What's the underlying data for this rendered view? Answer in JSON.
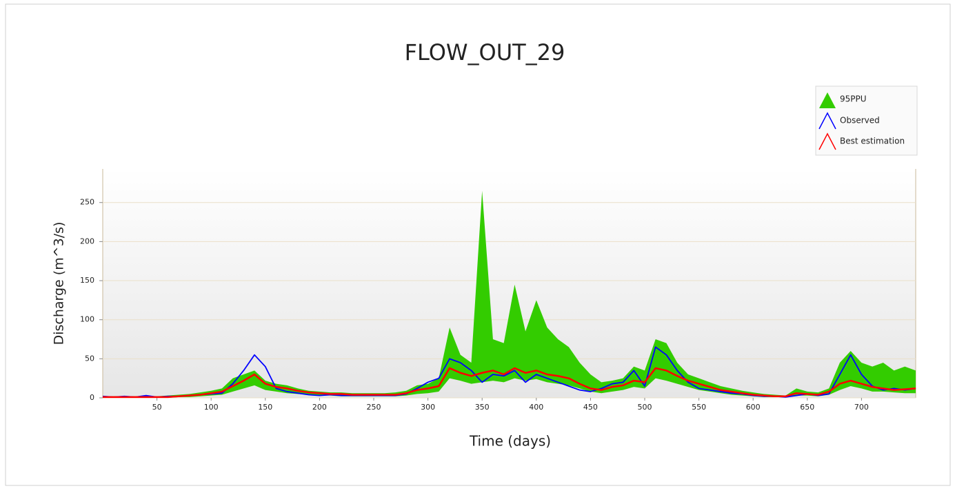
{
  "chart_data": {
    "type": "band-line",
    "title": "FLOW_OUT_29",
    "xlabel": "Time (days)",
    "ylabel": "Discharge (m^3/s)",
    "x": [
      0,
      10,
      20,
      30,
      40,
      50,
      60,
      70,
      80,
      90,
      100,
      110,
      120,
      130,
      140,
      150,
      160,
      170,
      180,
      190,
      200,
      210,
      220,
      230,
      240,
      250,
      260,
      270,
      280,
      290,
      300,
      310,
      320,
      330,
      340,
      350,
      360,
      370,
      380,
      390,
      400,
      410,
      420,
      430,
      440,
      450,
      460,
      470,
      480,
      490,
      500,
      510,
      520,
      530,
      540,
      550,
      560,
      570,
      580,
      590,
      600,
      610,
      620,
      630,
      640,
      650,
      660,
      670,
      680,
      690,
      700,
      710,
      720,
      730,
      740,
      750
    ],
    "series": [
      {
        "name": "95PPU",
        "color": "#33cc00",
        "lower": [
          0,
          0,
          0,
          0,
          0,
          0,
          0,
          1,
          1,
          2,
          3,
          4,
          8,
          12,
          16,
          10,
          8,
          6,
          5,
          4,
          3,
          3,
          2,
          2,
          2,
          2,
          2,
          2,
          3,
          5,
          6,
          8,
          25,
          22,
          18,
          20,
          22,
          20,
          25,
          22,
          24,
          20,
          18,
          16,
          12,
          8,
          6,
          8,
          10,
          14,
          12,
          25,
          22,
          18,
          14,
          10,
          8,
          6,
          4,
          3,
          2,
          1,
          1,
          1,
          3,
          3,
          2,
          4,
          10,
          15,
          12,
          8,
          8,
          7,
          6,
          6
        ],
        "upper": [
          2,
          2,
          2,
          2,
          2,
          2,
          3,
          4,
          5,
          7,
          9,
          12,
          25,
          30,
          35,
          22,
          18,
          16,
          12,
          9,
          8,
          7,
          7,
          6,
          6,
          6,
          6,
          7,
          9,
          16,
          18,
          25,
          90,
          55,
          45,
          265,
          75,
          70,
          145,
          85,
          125,
          90,
          75,
          65,
          45,
          30,
          20,
          22,
          25,
          40,
          35,
          75,
          70,
          45,
          30,
          25,
          20,
          15,
          12,
          9,
          7,
          5,
          4,
          3,
          12,
          8,
          7,
          12,
          45,
          60,
          45,
          40,
          45,
          35,
          40,
          35
        ]
      },
      {
        "name": "Observed",
        "color": "#0000ff",
        "values": [
          2,
          1,
          2,
          1,
          3,
          1,
          2,
          2,
          3,
          4,
          5,
          6,
          18,
          35,
          55,
          40,
          12,
          8,
          6,
          4,
          3,
          4,
          3,
          3,
          3,
          3,
          3,
          3,
          5,
          12,
          20,
          25,
          50,
          45,
          35,
          20,
          30,
          28,
          35,
          20,
          30,
          25,
          20,
          15,
          10,
          8,
          12,
          18,
          20,
          35,
          15,
          65,
          55,
          35,
          20,
          12,
          10,
          8,
          6,
          5,
          3,
          2,
          2,
          1,
          3,
          5,
          3,
          5,
          30,
          55,
          30,
          15,
          10,
          12,
          10,
          12
        ]
      },
      {
        "name": "Best estimation",
        "color": "#ff0000",
        "values": [
          1,
          1,
          1,
          1,
          1,
          1,
          1,
          2,
          3,
          4,
          6,
          8,
          15,
          22,
          30,
          18,
          14,
          12,
          9,
          7,
          6,
          5,
          5,
          4,
          4,
          4,
          4,
          4,
          6,
          10,
          12,
          15,
          38,
          32,
          28,
          32,
          35,
          30,
          38,
          32,
          35,
          30,
          28,
          25,
          18,
          12,
          10,
          14,
          16,
          22,
          20,
          38,
          35,
          28,
          22,
          18,
          14,
          10,
          8,
          6,
          4,
          3,
          2,
          2,
          6,
          5,
          4,
          8,
          18,
          22,
          18,
          14,
          12,
          10,
          11,
          12
        ]
      }
    ],
    "xlim": [
      0,
      750
    ],
    "ylim": [
      0,
      293
    ],
    "xticks": [
      50,
      100,
      150,
      200,
      250,
      300,
      350,
      400,
      450,
      500,
      550,
      600,
      650,
      700
    ],
    "yticks": [
      0,
      50,
      100,
      150,
      200,
      250
    ],
    "grid": true
  }
}
